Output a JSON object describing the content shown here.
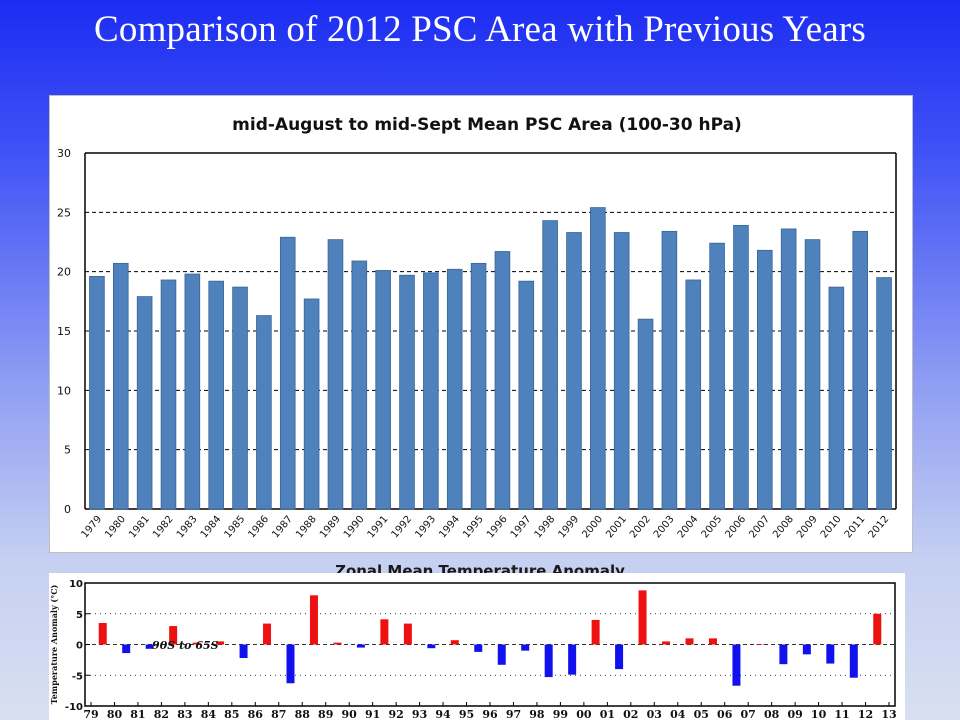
{
  "slide": {
    "title": "Comparison of 2012 PSC Area with Previous Years"
  },
  "chart_data": [
    {
      "type": "bar",
      "title": "mid-August to mid-Sept Mean PSC Area (100-30 hPa)",
      "xlabel": "",
      "ylabel": "",
      "ylim": [
        0,
        30
      ],
      "yticks": [
        0,
        5,
        10,
        15,
        20,
        25,
        30
      ],
      "dashed_gridlines": [
        5,
        10,
        15,
        20,
        25
      ],
      "legend": "none",
      "colors": {
        "bar": "#4f81bd",
        "bar_border": "#3a6596",
        "axis": "#000000"
      },
      "categories": [
        "1979",
        "1980",
        "1981",
        "1982",
        "1983",
        "1984",
        "1985",
        "1986",
        "1987",
        "1988",
        "1989",
        "1990",
        "1991",
        "1992",
        "1993",
        "1994",
        "1995",
        "1996",
        "1997",
        "1998",
        "1999",
        "2000",
        "2001",
        "2002",
        "2003",
        "2004",
        "2005",
        "2006",
        "2007",
        "2008",
        "2009",
        "2010",
        "2011",
        "2012"
      ],
      "values": [
        19.6,
        20.7,
        17.9,
        19.3,
        19.8,
        19.2,
        18.7,
        16.3,
        22.9,
        17.7,
        22.7,
        20.9,
        20.1,
        19.7,
        19.9,
        20.2,
        20.7,
        21.7,
        19.2,
        24.3,
        23.3,
        25.4,
        23.3,
        16.0,
        23.4,
        19.3,
        22.4,
        23.9,
        21.8,
        23.6,
        22.7,
        18.7,
        23.4,
        19.5
      ]
    },
    {
      "type": "bar",
      "title": "Zonal Mean Temperature Anomaly",
      "ylabel": "Temperature Anomaly (°C)",
      "annotation": "90S to 65S",
      "ylim": [
        -10,
        10
      ],
      "yticks": [
        10,
        5,
        0,
        -5,
        -10
      ],
      "tick_labels": [
        "10",
        "5",
        "0",
        "-5",
        "-10"
      ],
      "dashed_zero_line": true,
      "legend": "none",
      "colors": {
        "positive": "#ee1111",
        "negative": "#1111ee",
        "axis": "#000000"
      },
      "x_labels": [
        "79",
        "80",
        "81",
        "82",
        "83",
        "84",
        "85",
        "86",
        "87",
        "88",
        "89",
        "90",
        "91",
        "92",
        "93",
        "94",
        "95",
        "96",
        "97",
        "98",
        "99",
        "00",
        "01",
        "02",
        "03",
        "04",
        "05",
        "06",
        "07",
        "08",
        "09",
        "10",
        "11",
        "12",
        "13"
      ],
      "categories": [
        "80",
        "81",
        "82",
        "83",
        "84",
        "85",
        "86",
        "87",
        "88",
        "89",
        "90",
        "91",
        "92",
        "93",
        "94",
        "95",
        "96",
        "97",
        "98",
        "99",
        "00",
        "01",
        "02",
        "03",
        "04",
        "05",
        "06",
        "07",
        "08",
        "09",
        "10",
        "11",
        "12",
        "13"
      ],
      "values": [
        3.5,
        -1.4,
        -0.7,
        3.0,
        0.3,
        0.5,
        -2.2,
        3.4,
        -6.3,
        8.0,
        0.3,
        -0.5,
        4.1,
        3.4,
        -0.6,
        0.7,
        -1.2,
        -3.3,
        -1.0,
        -5.3,
        -4.9,
        4.0,
        -4.0,
        8.8,
        0.5,
        1.0,
        1.0,
        -6.7,
        0.0,
        -3.2,
        -1.6,
        -3.1,
        -5.4,
        5.0
      ]
    }
  ]
}
